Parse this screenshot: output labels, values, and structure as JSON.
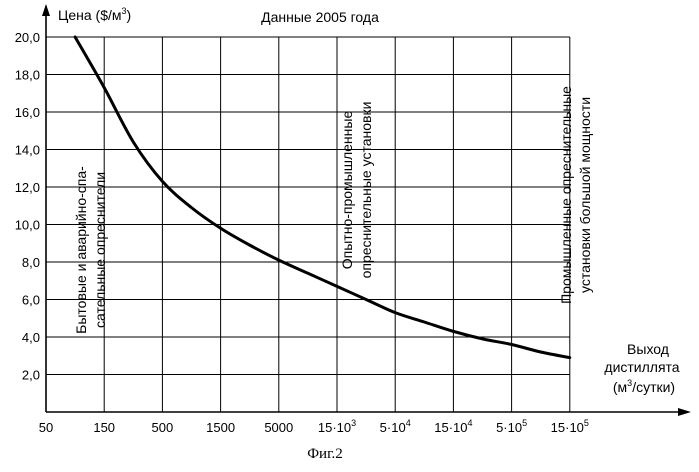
{
  "chart_data": {
    "type": "line",
    "title": "Данные 2005 года",
    "ylabel_main": "Цена ($/м",
    "ylabel_sup": "3",
    "ylabel_end": ")",
    "xlabel_lines": [
      "Выход",
      "дистиллята"
    ],
    "xlabel_unit_main": "(м",
    "xlabel_unit_sup": "3",
    "xlabel_unit_end": "/сутки)",
    "ylim": [
      0,
      20
    ],
    "yticks": [
      "2,0",
      "4,0",
      "6,0",
      "8,0",
      "10,0",
      "12,0",
      "14,0",
      "16,0",
      "18,0",
      "20,0"
    ],
    "ytick_values": [
      2,
      4,
      6,
      8,
      10,
      12,
      14,
      16,
      18,
      20
    ],
    "xticks": [
      {
        "base": "50",
        "sup": ""
      },
      {
        "base": "150",
        "sup": ""
      },
      {
        "base": "500",
        "sup": ""
      },
      {
        "base": "1500",
        "sup": ""
      },
      {
        "base": "5000",
        "sup": ""
      },
      {
        "base": "15·10",
        "sup": "3"
      },
      {
        "base": "5·10",
        "sup": "4"
      },
      {
        "base": "15·10",
        "sup": "4"
      },
      {
        "base": "5·10",
        "sup": "5"
      },
      {
        "base": "15·10",
        "sup": "5"
      }
    ],
    "series": [
      {
        "name": "price",
        "x_index": [
          0.5,
          1.0,
          1.5,
          2.0,
          2.5,
          3.0,
          3.5,
          4.0,
          4.5,
          5.0,
          5.5,
          6.0,
          6.5,
          7.0,
          7.5,
          8.0,
          8.5,
          9.0
        ],
        "values": [
          20.0,
          17.3,
          14.4,
          12.3,
          10.9,
          9.8,
          8.9,
          8.1,
          7.4,
          6.7,
          6.0,
          5.3,
          4.8,
          4.3,
          3.9,
          3.6,
          3.2,
          2.9
        ]
      }
    ],
    "annotations": [
      {
        "lines": [
          "Бытовые и аварийно-спа-",
          "сательные опреснители"
        ]
      },
      {
        "lines": [
          "Опытно-промышленные",
          "опреснительные установки"
        ]
      },
      {
        "lines": [
          "Промышленные опреснительные",
          "установки большой мощности"
        ]
      }
    ],
    "caption": "Фиг.2"
  }
}
